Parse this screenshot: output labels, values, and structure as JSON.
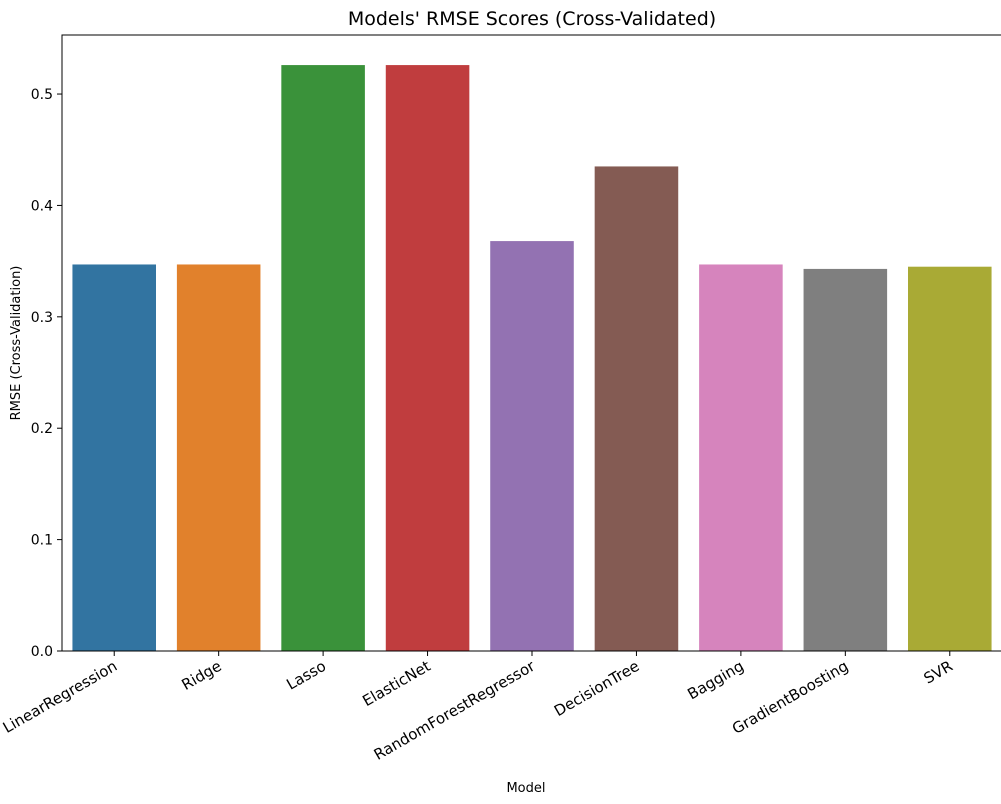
{
  "chart_data": {
    "type": "bar",
    "title": "Models' RMSE Scores (Cross-Validated)",
    "xlabel": "Model",
    "ylabel": "RMSE (Cross-Validation)",
    "ylim": [
      0,
      0.553
    ],
    "yticks": [
      0.0,
      0.1,
      0.2,
      0.3,
      0.4,
      0.5
    ],
    "ytick_labels": [
      "0.0",
      "0.1",
      "0.2",
      "0.3",
      "0.4",
      "0.5"
    ],
    "grid": false,
    "legend": "none",
    "categories": [
      "LinearRegression",
      "Ridge",
      "Lasso",
      "ElasticNet",
      "RandomForestRegressor",
      "DecisionTree",
      "Bagging",
      "GradientBoosting",
      "SVR"
    ],
    "values": [
      0.347,
      0.347,
      0.526,
      0.526,
      0.368,
      0.435,
      0.347,
      0.343,
      0.345
    ],
    "colors": [
      "#3274a1",
      "#e1812c",
      "#3a923a",
      "#c03d3e",
      "#9372b2",
      "#845b53",
      "#d684bd",
      "#7f7f7f",
      "#a9aa35"
    ]
  }
}
